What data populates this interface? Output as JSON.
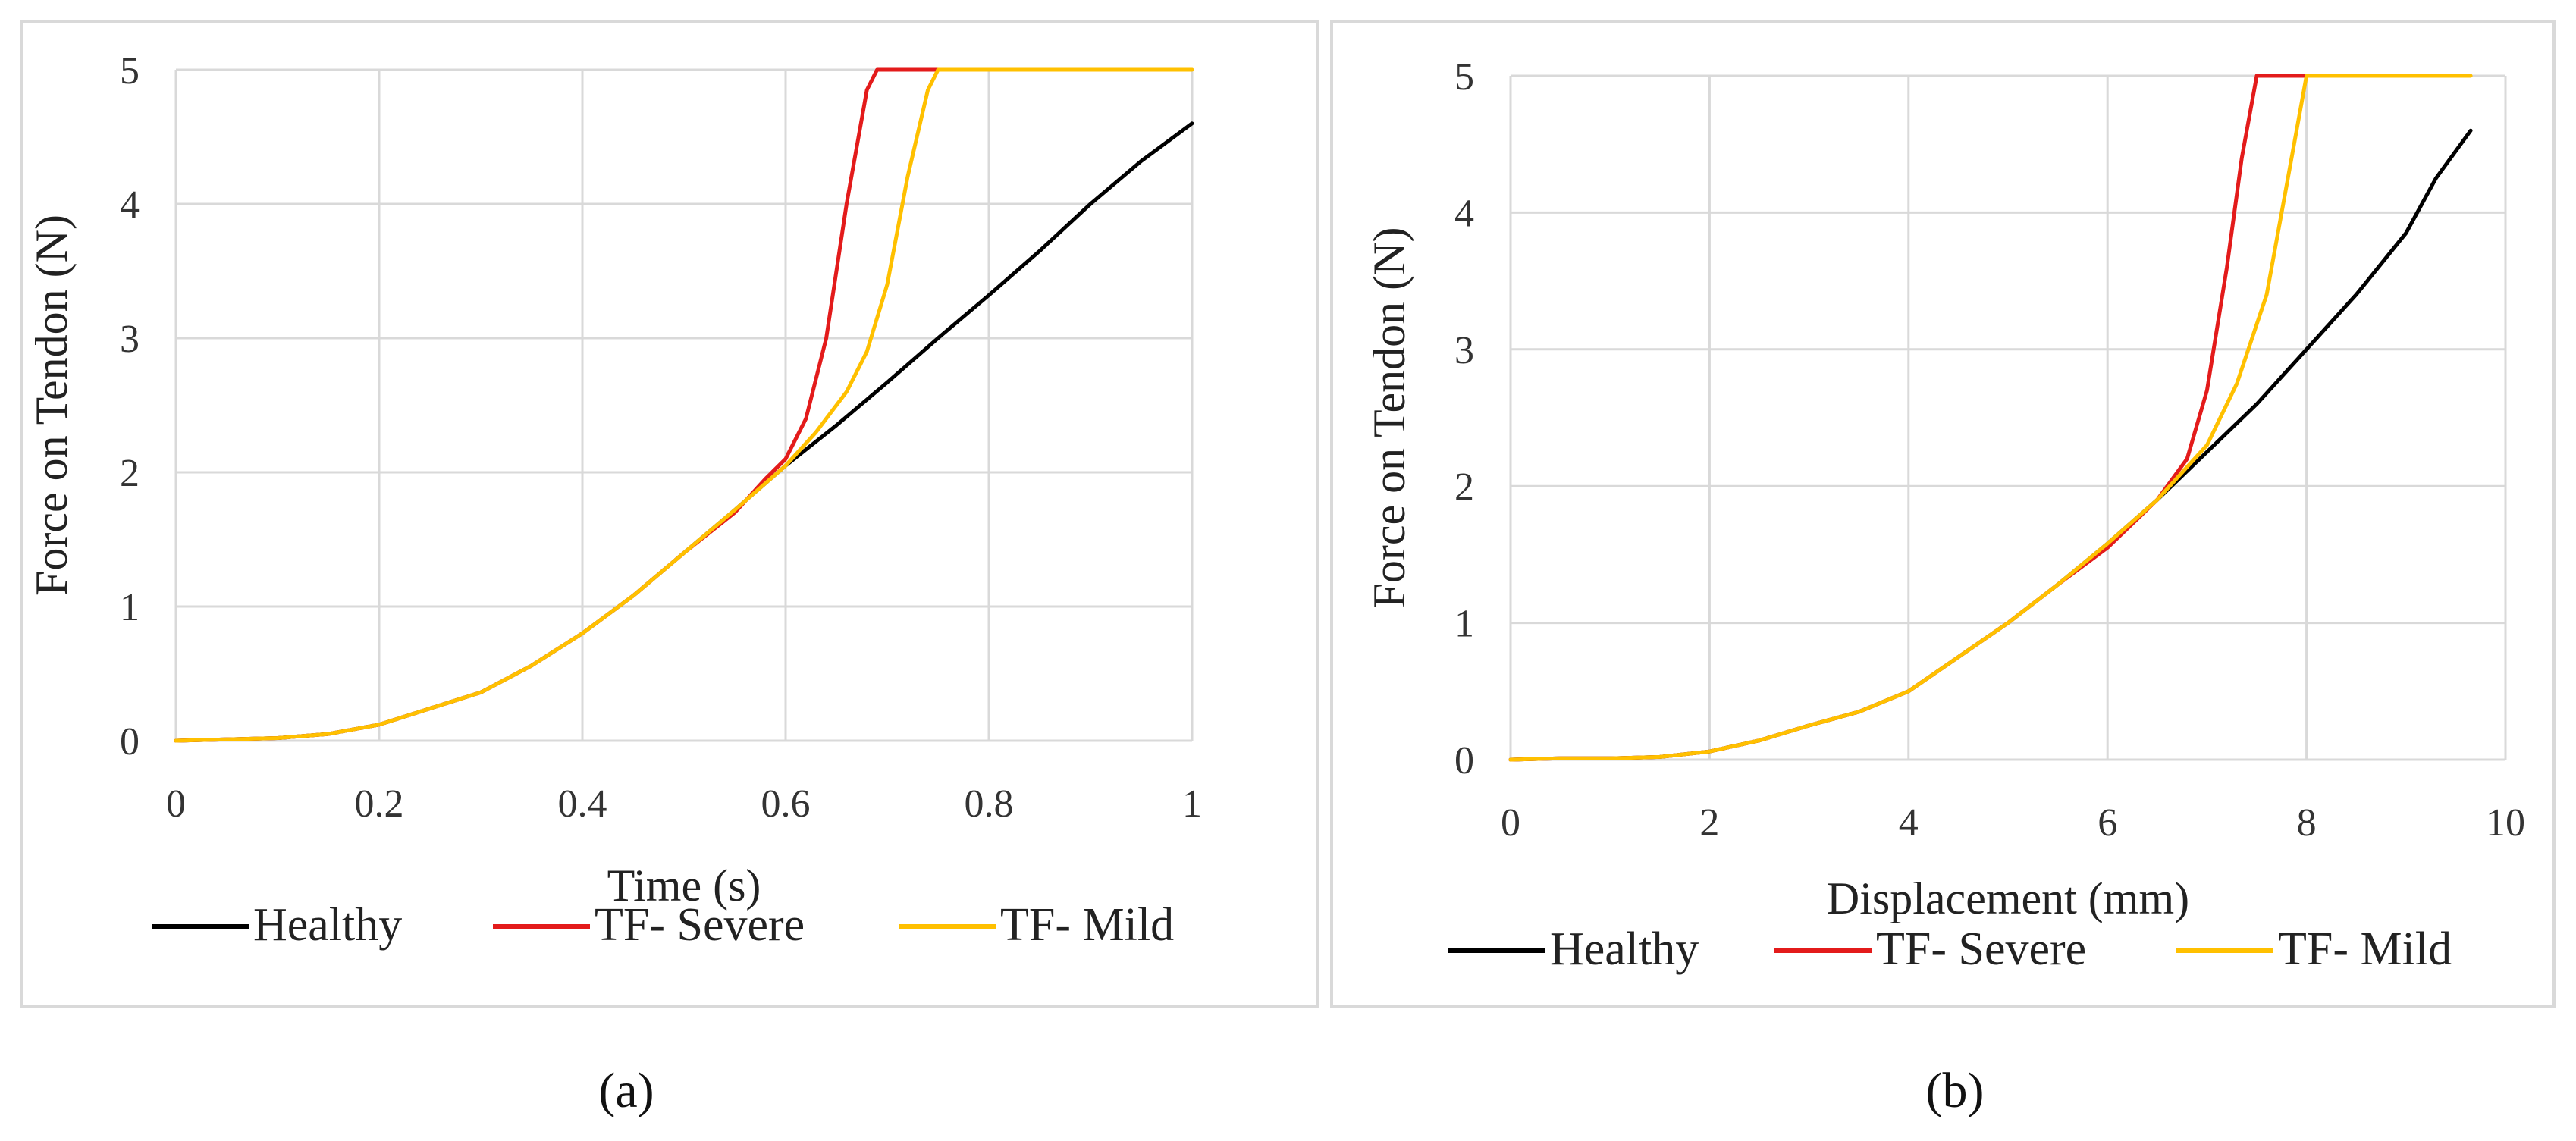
{
  "chart_data": [
    {
      "type": "line",
      "panel": "a",
      "caption": "(a)",
      "xlabel": "Time (s)",
      "ylabel": "Force on Tendon (N)",
      "xlim": [
        0,
        1
      ],
      "ylim": [
        0,
        5
      ],
      "xticks": [
        0,
        0.2,
        0.4,
        0.6,
        0.8,
        1
      ],
      "xtick_labels": [
        "0",
        "0.2",
        "0.4",
        "0.6",
        "0.8",
        "1"
      ],
      "yticks": [
        0,
        1,
        2,
        3,
        4,
        5
      ],
      "ytick_labels": [
        "0",
        "1",
        "2",
        "3",
        "4",
        "5"
      ],
      "grid": true,
      "legend_position": "bottom",
      "series": [
        {
          "name": "Healthy",
          "color": "#000000",
          "x": [
            0,
            0.05,
            0.1,
            0.15,
            0.2,
            0.25,
            0.3,
            0.35,
            0.4,
            0.45,
            0.5,
            0.55,
            0.6,
            0.65,
            0.7,
            0.75,
            0.8,
            0.85,
            0.9,
            0.95,
            1.0
          ],
          "y": [
            0,
            0.01,
            0.02,
            0.05,
            0.12,
            0.24,
            0.36,
            0.56,
            0.8,
            1.08,
            1.4,
            1.72,
            2.05,
            2.35,
            2.67,
            3.0,
            3.32,
            3.65,
            4.0,
            4.32,
            4.6
          ]
        },
        {
          "name": "TF- Severe",
          "color": "#e31b1b",
          "x": [
            0,
            0.05,
            0.1,
            0.15,
            0.2,
            0.25,
            0.3,
            0.35,
            0.4,
            0.45,
            0.5,
            0.55,
            0.58,
            0.6,
            0.62,
            0.64,
            0.66,
            0.68,
            0.69,
            0.7,
            0.75,
            0.8,
            0.81
          ],
          "y": [
            0,
            0.01,
            0.02,
            0.05,
            0.12,
            0.24,
            0.36,
            0.56,
            0.8,
            1.08,
            1.4,
            1.7,
            1.95,
            2.1,
            2.4,
            3.0,
            4.0,
            4.85,
            5.0,
            5.0,
            5.0,
            5.0,
            5.0
          ]
        },
        {
          "name": "TF- Mild",
          "color": "#ffc000",
          "x": [
            0,
            0.05,
            0.1,
            0.15,
            0.2,
            0.25,
            0.3,
            0.35,
            0.4,
            0.45,
            0.5,
            0.55,
            0.6,
            0.63,
            0.66,
            0.68,
            0.7,
            0.72,
            0.74,
            0.75,
            0.8,
            0.9,
            1.0
          ],
          "y": [
            0,
            0.01,
            0.02,
            0.05,
            0.12,
            0.24,
            0.36,
            0.56,
            0.8,
            1.08,
            1.4,
            1.72,
            2.05,
            2.3,
            2.6,
            2.9,
            3.4,
            4.2,
            4.85,
            5.0,
            5.0,
            5.0,
            5.0
          ]
        }
      ]
    },
    {
      "type": "line",
      "panel": "b",
      "caption": "(b)",
      "xlabel": "Displacement (mm)",
      "ylabel": "Force on Tendon (N)",
      "xlim": [
        0,
        10
      ],
      "ylim": [
        0,
        5
      ],
      "xticks": [
        0,
        2,
        4,
        6,
        8,
        10
      ],
      "xtick_labels": [
        "0",
        "2",
        "4",
        "6",
        "8",
        "10"
      ],
      "yticks": [
        0,
        1,
        2,
        3,
        4,
        5
      ],
      "ytick_labels": [
        "0",
        "1",
        "2",
        "3",
        "4",
        "5"
      ],
      "grid": true,
      "legend_position": "bottom",
      "series": [
        {
          "name": "Healthy",
          "color": "#000000",
          "x": [
            0,
            0.5,
            1,
            1.5,
            2,
            2.5,
            3,
            3.5,
            4,
            4.5,
            5,
            5.5,
            6,
            6.5,
            7,
            7.5,
            8,
            8.5,
            9,
            9.3,
            9.65
          ],
          "y": [
            0,
            0.01,
            0.01,
            0.02,
            0.06,
            0.14,
            0.25,
            0.35,
            0.5,
            0.75,
            1.0,
            1.28,
            1.58,
            1.9,
            2.25,
            2.6,
            3.0,
            3.4,
            3.85,
            4.25,
            4.6
          ]
        },
        {
          "name": "TF- Severe",
          "color": "#e31b1b",
          "x": [
            0,
            0.5,
            1,
            1.5,
            2,
            2.5,
            3,
            3.5,
            4,
            4.5,
            5,
            5.5,
            6,
            6.5,
            6.8,
            7.0,
            7.2,
            7.35,
            7.5,
            7.6,
            8.0,
            8.45
          ],
          "y": [
            0,
            0.01,
            0.01,
            0.02,
            0.06,
            0.14,
            0.25,
            0.35,
            0.5,
            0.75,
            1.0,
            1.28,
            1.55,
            1.9,
            2.2,
            2.7,
            3.6,
            4.4,
            5.0,
            5.0,
            5.0,
            5.0
          ]
        },
        {
          "name": "TF- Mild",
          "color": "#ffc000",
          "x": [
            0,
            0.5,
            1,
            1.5,
            2,
            2.5,
            3,
            3.5,
            4,
            4.5,
            5,
            5.5,
            6,
            6.5,
            7,
            7.3,
            7.6,
            7.8,
            8.0,
            8.5,
            9.0,
            9.65
          ],
          "y": [
            0,
            0.01,
            0.01,
            0.02,
            0.06,
            0.14,
            0.25,
            0.35,
            0.5,
            0.75,
            1.0,
            1.28,
            1.58,
            1.9,
            2.3,
            2.75,
            3.4,
            4.2,
            5.0,
            5.0,
            5.0,
            5.0
          ]
        }
      ]
    }
  ]
}
